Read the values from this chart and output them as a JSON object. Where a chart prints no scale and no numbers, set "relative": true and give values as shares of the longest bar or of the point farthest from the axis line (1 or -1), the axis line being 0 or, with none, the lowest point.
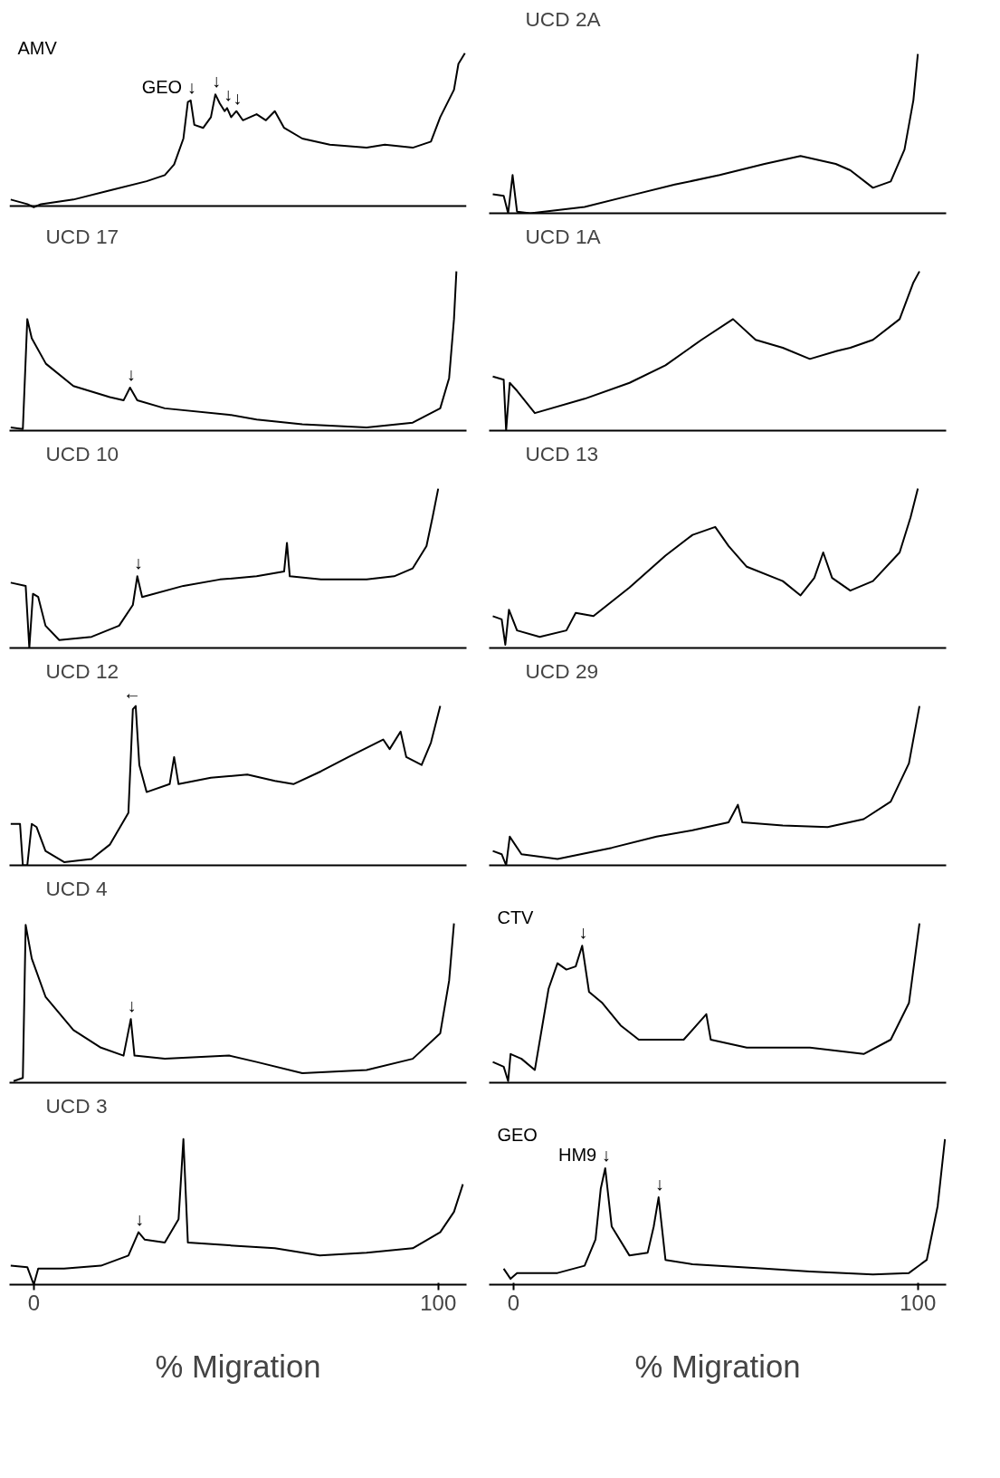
{
  "chart_data": [
    {
      "type": "line",
      "relative": true,
      "xlim": [
        -6,
        107
      ],
      "tick_labels": false,
      "x": [
        -5.7,
        -1.6,
        0,
        1.8,
        9.8,
        18.8,
        27.9,
        32.4,
        34.7,
        37,
        38.1,
        38.8,
        39.7,
        41.9,
        43.8,
        44.9,
        46,
        47.2,
        47.8,
        48.8,
        50.1,
        51.7,
        55.1,
        57.4,
        59.6,
        61.9,
        66.4,
        73.2,
        82.3,
        86.8,
        93.7,
        98.2,
        100.5,
        103.9,
        105,
        106.6
      ],
      "series": [
        {
          "color": "#000000",
          "values": [
            0.04,
            0.01,
            -0.01,
            0.01,
            0.04,
            0.1,
            0.16,
            0.2,
            0.27,
            0.44,
            0.68,
            0.69,
            0.53,
            0.51,
            0.58,
            0.73,
            0.67,
            0.62,
            0.64,
            0.58,
            0.62,
            0.56,
            0.6,
            0.56,
            0.62,
            0.51,
            0.44,
            0.4,
            0.38,
            0.4,
            0.38,
            0.42,
            0.58,
            0.76,
            0.93,
            1.0
          ]
        }
      ],
      "annotations": [
        {
          "text": "GEO ↓",
          "x": 38.8,
          "y": 0.69
        },
        {
          "text": "↓",
          "x": 44.9,
          "y": 0.73
        },
        "AMV",
        {
          "text": "↓",
          "x": 47.8,
          "y": 0.64
        },
        {
          "text": "↓",
          "x": 50.1,
          "y": 0.62
        }
      ]
    },
    {
      "type": "line",
      "title": "UCD 2A",
      "relative": true,
      "xlim": [
        -6,
        107
      ],
      "tick_labels": false,
      "x": [
        -5.1,
        -2.4,
        -1.3,
        -0.2,
        0.9,
        4.2,
        17.6,
        28.7,
        39.9,
        51,
        62.1,
        71,
        79.7,
        83.3,
        88.9,
        93.3,
        96.7,
        98.9,
        100
      ],
      "series": [
        {
          "color": "#000000",
          "values": [
            0.12,
            0.11,
            0,
            0.24,
            0.01,
            0,
            0.04,
            0.11,
            0.18,
            0.24,
            0.31,
            0.36,
            0.31,
            0.27,
            0.16,
            0.2,
            0.4,
            0.71,
            1.0
          ]
        }
      ]
    },
    {
      "type": "line",
      "title": "UCD 17",
      "relative": true,
      "xlim": [
        -6,
        107
      ],
      "tick_labels": false,
      "x": [
        -5.7,
        -2.7,
        -1.6,
        -0.5,
        3,
        9.8,
        18.8,
        22.2,
        23.8,
        25.6,
        32.4,
        48.3,
        55.1,
        66.4,
        82.3,
        93.7,
        100.5,
        102.7,
        103.9,
        104.5
      ],
      "series": [
        {
          "color": "#000000",
          "values": [
            0.02,
            0.01,
            0.7,
            0.58,
            0.42,
            0.28,
            0.21,
            0.19,
            0.27,
            0.19,
            0.14,
            0.1,
            0.07,
            0.04,
            0.02,
            0.05,
            0.14,
            0.33,
            0.7,
            1.0
          ]
        }
      ],
      "annotations": [
        {
          "text": "↓",
          "x": 23.8,
          "y": 0.27
        }
      ]
    },
    {
      "type": "line",
      "title": "UCD 1A",
      "relative": true,
      "xlim": [
        -6,
        107
      ],
      "tick_labels": false,
      "x": [
        -5.1,
        -2.4,
        -1.8,
        -0.9,
        0.9,
        5.3,
        17.6,
        28.7,
        37.6,
        46.5,
        54.3,
        59.9,
        66.6,
        73.3,
        80,
        83.3,
        88.9,
        95.5,
        98.9,
        100.4
      ],
      "series": [
        {
          "color": "#000000",
          "values": [
            0.34,
            0.32,
            0,
            0.3,
            0.25,
            0.11,
            0.2,
            0.3,
            0.41,
            0.57,
            0.7,
            0.57,
            0.52,
            0.45,
            0.5,
            0.52,
            0.57,
            0.7,
            0.93,
            1.0
          ]
        }
      ]
    },
    {
      "type": "line",
      "title": "UCD 10",
      "relative": true,
      "xlim": [
        -6,
        107
      ],
      "tick_labels": false,
      "x": [
        -5.7,
        -2,
        -1.1,
        -0.2,
        1.1,
        2.9,
        6.3,
        14.3,
        21.1,
        24.5,
        25.6,
        26.8,
        37,
        46,
        55.1,
        61.9,
        62.6,
        63.3,
        71,
        82.3,
        89.1,
        93.7,
        97.1,
        98.6,
        100
      ],
      "series": [
        {
          "color": "#000000",
          "values": [
            0.41,
            0.39,
            0,
            0.34,
            0.32,
            0.14,
            0.05,
            0.07,
            0.14,
            0.27,
            0.45,
            0.32,
            0.39,
            0.43,
            0.45,
            0.48,
            0.66,
            0.45,
            0.43,
            0.43,
            0.45,
            0.5,
            0.64,
            0.82,
            1.0
          ]
        }
      ],
      "annotations": [
        {
          "text": "↓",
          "x": 25.6,
          "y": 0.45
        }
      ]
    },
    {
      "type": "line",
      "title": "UCD 13",
      "relative": true,
      "xlim": [
        -6,
        107
      ],
      "tick_labels": false,
      "x": [
        -5.1,
        -2.9,
        -2,
        -1.1,
        0.9,
        6.5,
        13.1,
        15.4,
        19.8,
        28.7,
        37.6,
        44.3,
        49.9,
        53.2,
        57.7,
        66.6,
        71,
        74.4,
        76.6,
        78.8,
        83.3,
        88.9,
        95.5,
        98.2,
        100
      ],
      "series": [
        {
          "color": "#000000",
          "values": [
            0.2,
            0.18,
            0.02,
            0.24,
            0.11,
            0.07,
            0.11,
            0.22,
            0.2,
            0.38,
            0.58,
            0.71,
            0.76,
            0.64,
            0.51,
            0.42,
            0.33,
            0.44,
            0.6,
            0.44,
            0.36,
            0.42,
            0.6,
            0.82,
            1.0
          ]
        }
      ]
    },
    {
      "type": "line",
      "title": "UCD 12",
      "relative": true,
      "xlim": [
        -6,
        107
      ],
      "tick_labels": false,
      "x": [
        -5.7,
        -3.4,
        -2.7,
        -1.6,
        -0.5,
        0.7,
        2.9,
        7.5,
        14.3,
        18.8,
        23.4,
        24.5,
        25.2,
        26.1,
        27.9,
        33.6,
        34.7,
        35.8,
        43.8,
        52.8,
        59.6,
        64.2,
        71,
        77.8,
        86.4,
        88,
        90.7,
        92.1,
        95.9,
        98.2,
        100.5
      ],
      "series": [
        {
          "color": "#000000",
          "values": [
            0.26,
            0.26,
            0,
            0,
            0.26,
            0.24,
            0.09,
            0.02,
            0.04,
            0.13,
            0.33,
            0.98,
            1.0,
            0.63,
            0.46,
            0.51,
            0.68,
            0.51,
            0.55,
            0.57,
            0.53,
            0.51,
            0.59,
            0.68,
            0.79,
            0.73,
            0.84,
            0.68,
            0.63,
            0.77,
            1.0
          ]
        }
      ],
      "annotations": [
        {
          "text": "←",
          "x": 25.2,
          "y": 1.0
        }
      ]
    },
    {
      "type": "line",
      "title": "UCD 29",
      "relative": true,
      "xlim": [
        -6,
        107
      ],
      "tick_labels": false,
      "x": [
        -5.1,
        -2.9,
        -1.8,
        -0.9,
        2,
        10.9,
        24.3,
        35.4,
        44.3,
        53.2,
        55.5,
        56.6,
        66.6,
        77.7,
        86.6,
        93.3,
        97.8,
        100.4
      ],
      "series": [
        {
          "color": "#000000",
          "values": [
            0.09,
            0.07,
            0,
            0.18,
            0.07,
            0.04,
            0.11,
            0.18,
            0.22,
            0.27,
            0.38,
            0.27,
            0.25,
            0.24,
            0.29,
            0.4,
            0.64,
            1.0
          ]
        }
      ]
    },
    {
      "type": "line",
      "title": "UCD 4",
      "relative": true,
      "xlim": [
        -6,
        107
      ],
      "tick_labels": false,
      "x": [
        -5,
        -2.7,
        -2,
        -0.5,
        2.9,
        9.8,
        16.6,
        22.2,
        24,
        24.9,
        32.4,
        48.3,
        55.1,
        66.4,
        82.3,
        93.7,
        100.5,
        102.7,
        103.9
      ],
      "series": [
        {
          "color": "#000000",
          "values": [
            0.01,
            0.03,
            0.99,
            0.78,
            0.54,
            0.33,
            0.22,
            0.17,
            0.4,
            0.17,
            0.15,
            0.17,
            0.13,
            0.06,
            0.08,
            0.15,
            0.31,
            0.64,
            1.0
          ]
        }
      ],
      "annotations": [
        {
          "text": "↓",
          "x": 24,
          "y": 0.4
        }
      ]
    },
    {
      "type": "line",
      "relative": true,
      "xlim": [
        -6,
        107
      ],
      "tick_labels": false,
      "x": [
        -5.1,
        -2.4,
        -1.3,
        -0.7,
        2,
        5.3,
        8.7,
        10.9,
        13.1,
        15.4,
        17,
        18.7,
        22,
        26.5,
        31,
        42.1,
        47.7,
        48.8,
        57.7,
        73.3,
        86.6,
        93.3,
        97.8,
        100.4
      ],
      "series": [
        {
          "color": "#000000",
          "values": [
            0.13,
            0.1,
            0.01,
            0.18,
            0.15,
            0.08,
            0.59,
            0.75,
            0.71,
            0.73,
            0.86,
            0.57,
            0.5,
            0.36,
            0.27,
            0.27,
            0.43,
            0.27,
            0.22,
            0.22,
            0.18,
            0.27,
            0.5,
            1.0
          ]
        }
      ],
      "annotations": [
        "CTV",
        {
          "text": "↓",
          "x": 17,
          "y": 0.86
        }
      ]
    },
    {
      "type": "line",
      "title": "UCD 3",
      "relative": true,
      "xlim": [
        -6,
        107
      ],
      "xticks": [
        0,
        100
      ],
      "xlabel": "% Migration",
      "tick_labels": "x",
      "x": [
        -5.7,
        -1.6,
        0,
        1.1,
        7.5,
        16.6,
        23.4,
        25.9,
        27.4,
        32.4,
        35.8,
        37,
        38.1,
        48.3,
        59.6,
        70.7,
        82.3,
        93.7,
        100.5,
        103.9,
        106.1
      ],
      "series": [
        {
          "color": "#000000",
          "values": [
            0.13,
            0.12,
            0,
            0.11,
            0.11,
            0.13,
            0.2,
            0.36,
            0.31,
            0.29,
            0.45,
            1.0,
            0.29,
            0.27,
            0.25,
            0.2,
            0.22,
            0.25,
            0.36,
            0.5,
            0.69
          ]
        }
      ],
      "annotations": [
        {
          "text": "↓",
          "x": 25.9,
          "y": 0.36
        }
      ]
    },
    {
      "type": "line",
      "relative": true,
      "xlim": [
        -6,
        107
      ],
      "xticks": [
        0,
        100
      ],
      "xlabel": "% Migration",
      "tick_labels": "x",
      "x": [
        -2.4,
        -0.7,
        0.9,
        10.9,
        17.6,
        20.3,
        21.6,
        22.7,
        24.3,
        28.7,
        33.2,
        34.7,
        35.9,
        37.6,
        44.3,
        62.1,
        73.3,
        88.9,
        97.8,
        102.2,
        104.9,
        106.7
      ],
      "series": [
        {
          "color": "#000000",
          "values": [
            0.11,
            0.04,
            0.08,
            0.08,
            0.13,
            0.31,
            0.66,
            0.8,
            0.4,
            0.2,
            0.22,
            0.4,
            0.6,
            0.17,
            0.14,
            0.11,
            0.09,
            0.07,
            0.08,
            0.17,
            0.54,
            1.0
          ]
        }
      ],
      "annotations": [
        {
          "text": "HM9 ↓",
          "x": 22.7,
          "y": 0.8
        },
        {
          "text": "↓",
          "x": 35.9,
          "y": 0.6
        },
        "GEO"
      ]
    }
  ]
}
